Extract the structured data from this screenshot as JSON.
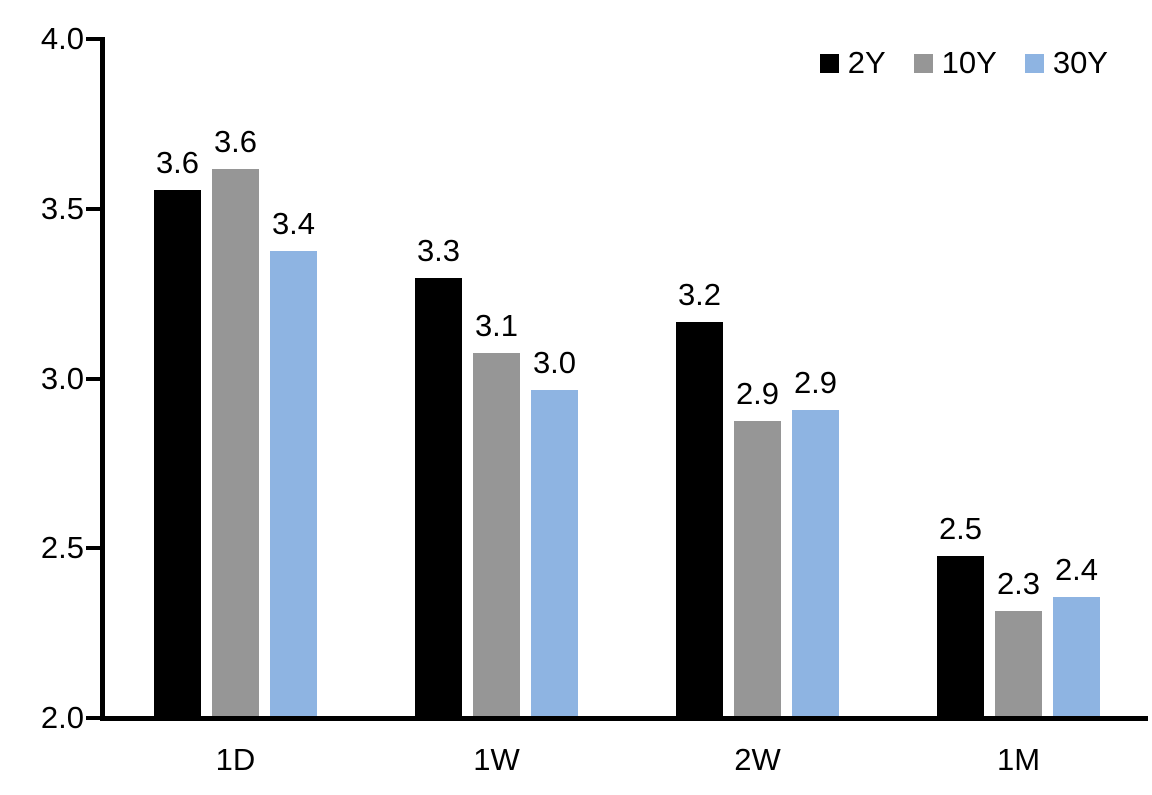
{
  "chart_data": {
    "type": "bar",
    "title": "",
    "categories": [
      "1D",
      "1W",
      "2W",
      "1M"
    ],
    "series": [
      {
        "name": "2Y",
        "color": "#000000",
        "values": [
          3.55,
          3.29,
          3.16,
          2.47
        ],
        "labels": [
          "3.6",
          "3.3",
          "3.2",
          "2.5"
        ]
      },
      {
        "name": "10Y",
        "color": "#969696",
        "values": [
          3.61,
          3.07,
          2.87,
          2.31
        ],
        "labels": [
          "3.6",
          "3.1",
          "2.9",
          "2.3"
        ]
      },
      {
        "name": "30Y",
        "color": "#8EB4E2",
        "values": [
          3.37,
          2.96,
          2.9,
          2.35
        ],
        "labels": [
          "3.4",
          "3.0",
          "2.9",
          "2.4"
        ]
      }
    ],
    "ylim": [
      2.0,
      4.0
    ],
    "yticks": [
      2.0,
      2.5,
      3.0,
      3.5,
      4.0
    ],
    "ytick_labels": [
      "2.0",
      "2.5",
      "3.0",
      "3.5",
      "4.0"
    ],
    "grid": false,
    "data_labels": true,
    "legend_position": "top-right",
    "axis_color": "#000000",
    "text_color": "#000000"
  }
}
